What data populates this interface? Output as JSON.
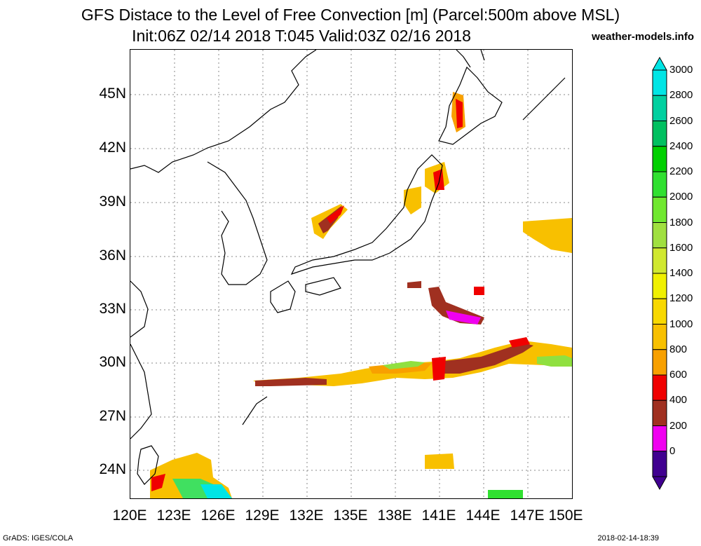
{
  "title_line1": "GFS Distace to the Level of Free Convection [m] (Parcel:500m above MSL)",
  "title_line2": "Init:06Z 02/14 2018 T:045 Valid:03Z 02/16 2018",
  "site": "weather-models.info",
  "lat_labels": [
    "45N",
    "42N",
    "39N",
    "36N",
    "33N",
    "30N",
    "27N",
    "24N"
  ],
  "lon_labels": [
    "120E",
    "123E",
    "126E",
    "129E",
    "132E",
    "135E",
    "138E",
    "141E",
    "144E",
    "147E",
    "150E"
  ],
  "colorbar": {
    "labels": [
      "3000",
      "2800",
      "2600",
      "2400",
      "2200",
      "2000",
      "1800",
      "1600",
      "1400",
      "1200",
      "1000",
      "800",
      "600",
      "400",
      "200",
      "0"
    ],
    "colors": [
      "#00e5e5",
      "#00d0a0",
      "#00c060",
      "#00d000",
      "#30e030",
      "#70e830",
      "#a0e040",
      "#d0e830",
      "#f0f000",
      "#f8d800",
      "#f8c000",
      "#f8a000",
      "#f00000",
      "#a03020",
      "#f000f0",
      "#400090"
    ]
  },
  "footer_left": "GrADS: IGES/COLA",
  "footer_right": "2018-02-14-18:39"
}
